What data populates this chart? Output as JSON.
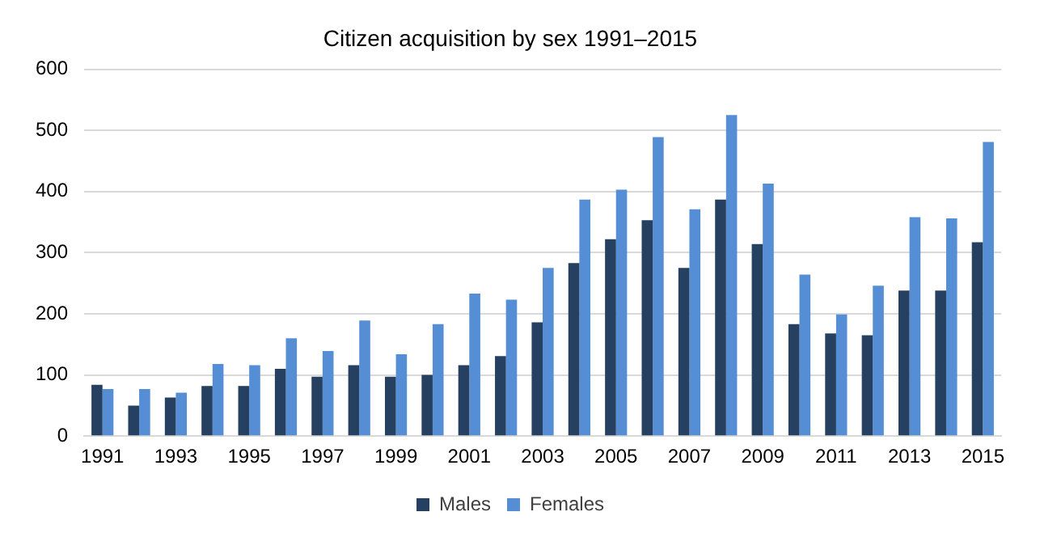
{
  "chart_data": {
    "type": "bar",
    "title": "Citizen acquisition by sex 1991–2015",
    "categories": [
      "1991",
      null,
      "1993",
      null,
      "1995",
      null,
      "1997",
      null,
      "1999",
      null,
      "2001",
      null,
      "2003",
      null,
      "2005",
      null,
      "2007",
      null,
      "2009",
      null,
      "2011",
      null,
      "2013",
      null,
      "2015"
    ],
    "series": [
      {
        "name": "Males",
        "color": "#264061",
        "values": [
          84,
          50,
          63,
          82,
          82,
          110,
          97,
          116,
          97,
          100,
          116,
          131,
          186,
          283,
          322,
          353,
          275,
          387,
          314,
          183,
          168,
          165,
          238,
          238,
          317
        ]
      },
      {
        "name": "Females",
        "color": "#558ed5",
        "values": [
          77,
          77,
          71,
          118,
          116,
          160,
          139,
          189,
          134,
          183,
          233,
          223,
          275,
          387,
          403,
          489,
          371,
          525,
          413,
          264,
          199,
          246,
          358,
          356,
          481
        ]
      }
    ],
    "ylim": [
      0,
      600
    ],
    "yticks": [
      0,
      100,
      200,
      300,
      400,
      500,
      600
    ],
    "grid": "y",
    "legend": "bottom"
  }
}
